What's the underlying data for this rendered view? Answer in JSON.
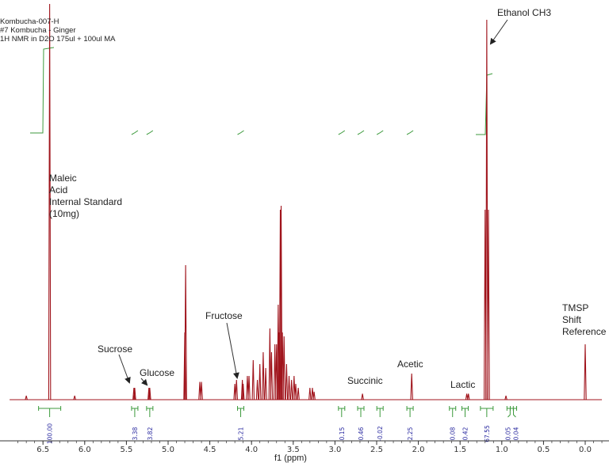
{
  "header": {
    "sample": "Kombucha-007-H",
    "description": "#7 Kombucha - Ginger",
    "experiment": "1H NMR in D2O 175ul + 100ul MA"
  },
  "chart_data": {
    "type": "line",
    "xlabel": "f1 (ppm)",
    "xlim": [
      6.9,
      -0.2
    ],
    "x_reversed": true,
    "ylim": [
      0,
      1.0
    ],
    "grid": false,
    "colors": {
      "spectrum": "#a0141c",
      "integral": "#3c9a3c",
      "integral_label": "#2a2aa0"
    },
    "x_ticks": [
      "6.5",
      "6.0",
      "5.5",
      "5.0",
      "4.5",
      "4.0",
      "3.5",
      "3.0",
      "2.5",
      "2.0",
      "1.5",
      "1.0",
      "0.5",
      "0.0"
    ],
    "peaks": [
      {
        "ppm": 6.7,
        "intensity": 0.01
      },
      {
        "ppm": 6.42,
        "intensity": 1.0
      },
      {
        "ppm": 6.12,
        "intensity": 0.01
      },
      {
        "ppm": 5.41,
        "intensity": 0.03
      },
      {
        "ppm": 5.4,
        "intensity": 0.03
      },
      {
        "ppm": 5.23,
        "intensity": 0.03
      },
      {
        "ppm": 5.22,
        "intensity": 0.03
      },
      {
        "ppm": 4.8,
        "intensity": 0.17
      },
      {
        "ppm": 4.79,
        "intensity": 0.34
      },
      {
        "ppm": 4.62,
        "intensity": 0.045
      },
      {
        "ppm": 4.6,
        "intensity": 0.045
      },
      {
        "ppm": 4.2,
        "intensity": 0.04
      },
      {
        "ppm": 4.18,
        "intensity": 0.05
      },
      {
        "ppm": 4.11,
        "intensity": 0.05
      },
      {
        "ppm": 4.1,
        "intensity": 0.04
      },
      {
        "ppm": 4.05,
        "intensity": 0.06
      },
      {
        "ppm": 4.03,
        "intensity": 0.06
      },
      {
        "ppm": 3.98,
        "intensity": 0.1
      },
      {
        "ppm": 3.93,
        "intensity": 0.05
      },
      {
        "ppm": 3.9,
        "intensity": 0.09
      },
      {
        "ppm": 3.86,
        "intensity": 0.12
      },
      {
        "ppm": 3.83,
        "intensity": 0.08
      },
      {
        "ppm": 3.78,
        "intensity": 0.18
      },
      {
        "ppm": 3.76,
        "intensity": 0.12
      },
      {
        "ppm": 3.72,
        "intensity": 0.14
      },
      {
        "ppm": 3.7,
        "intensity": 0.14
      },
      {
        "ppm": 3.68,
        "intensity": 0.24
      },
      {
        "ppm": 3.67,
        "intensity": 0.17
      },
      {
        "ppm": 3.655,
        "intensity": 0.48
      },
      {
        "ppm": 3.645,
        "intensity": 0.49
      },
      {
        "ppm": 3.63,
        "intensity": 0.17
      },
      {
        "ppm": 3.61,
        "intensity": 0.16
      },
      {
        "ppm": 3.58,
        "intensity": 0.09
      },
      {
        "ppm": 3.55,
        "intensity": 0.06
      },
      {
        "ppm": 3.52,
        "intensity": 0.05
      },
      {
        "ppm": 3.49,
        "intensity": 0.06
      },
      {
        "ppm": 3.47,
        "intensity": 0.04
      },
      {
        "ppm": 3.44,
        "intensity": 0.03
      },
      {
        "ppm": 3.3,
        "intensity": 0.03
      },
      {
        "ppm": 3.27,
        "intensity": 0.03
      },
      {
        "ppm": 3.25,
        "intensity": 0.02
      },
      {
        "ppm": 2.67,
        "intensity": 0.015
      },
      {
        "ppm": 2.08,
        "intensity": 0.066
      },
      {
        "ppm": 1.42,
        "intensity": 0.015
      },
      {
        "ppm": 1.4,
        "intensity": 0.015
      },
      {
        "ppm": 1.2,
        "intensity": 0.48
      },
      {
        "ppm": 1.18,
        "intensity": 0.96
      },
      {
        "ppm": 1.16,
        "intensity": 0.48
      },
      {
        "ppm": 0.95,
        "intensity": 0.01
      },
      {
        "ppm": 0.0,
        "intensity": 0.14
      }
    ],
    "integrals": [
      {
        "ppm": 6.42,
        "value": "100.00"
      },
      {
        "ppm": 5.4,
        "value": "3.38"
      },
      {
        "ppm": 5.22,
        "value": "3.82"
      },
      {
        "ppm": 4.13,
        "value": "5.21"
      },
      {
        "ppm": 2.92,
        "value": "0.15"
      },
      {
        "ppm": 2.69,
        "value": "0.46"
      },
      {
        "ppm": 2.46,
        "value": "-0.02"
      },
      {
        "ppm": 2.1,
        "value": "2.25"
      },
      {
        "ppm": 1.59,
        "value": "0.08"
      },
      {
        "ppm": 1.44,
        "value": "0.42"
      },
      {
        "ppm": 1.18,
        "value": "67.55"
      },
      {
        "ppm": 0.9,
        "value": "0.05"
      },
      {
        "ppm": 0.86,
        "value": "0.04"
      }
    ],
    "annotations": {
      "maleic": "Maleic\nAcid\nInternal Standard\n(10mg)",
      "ethanol": "Ethanol CH3",
      "sucrose": "Sucrose",
      "glucose": "Glucose",
      "fructose": "Fructose",
      "succinic": "Succinic",
      "acetic": "Acetic",
      "lactic": "Lactic",
      "tmsp": "TMSP\nShift\nReference"
    }
  }
}
